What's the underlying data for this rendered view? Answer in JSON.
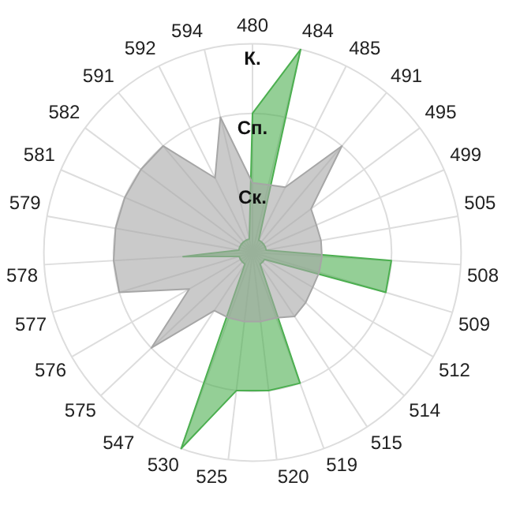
{
  "chart_data": {
    "type": "radar",
    "categories": [
      "480",
      "484",
      "485",
      "491",
      "495",
      "499",
      "505",
      "508",
      "509",
      "512",
      "514",
      "515",
      "519",
      "520",
      "525",
      "530",
      "547",
      "575",
      "576",
      "577",
      "578",
      "579",
      "581",
      "582",
      "591",
      "592",
      "594"
    ],
    "series": [
      {
        "color": "#a6a6a6",
        "values": [
          1,
          1,
          1.05,
          2,
          1.05,
          1,
          1,
          1,
          1,
          1,
          1.05,
          1.1,
          1,
          1,
          1,
          1,
          1,
          2,
          1.05,
          2,
          2,
          2,
          2,
          2,
          2,
          1.2,
          2
        ]
      },
      {
        "color": "#4caf50",
        "values": [
          2,
          3,
          0.2,
          0.2,
          0.2,
          0.2,
          0.2,
          2,
          2,
          0.2,
          0.2,
          0.2,
          2,
          2,
          2,
          3,
          0.2,
          0.2,
          0.2,
          0.2,
          1,
          0.2,
          0.2,
          0.2,
          0.2,
          0.2,
          0.2
        ]
      }
    ],
    "ylim": [
      0,
      3
    ],
    "yticks": [
      {
        "value": 1,
        "label": "Ск."
      },
      {
        "value": 2,
        "label": "Сп."
      },
      {
        "value": 3,
        "label": "К."
      }
    ],
    "grid": true,
    "marker": "none"
  }
}
